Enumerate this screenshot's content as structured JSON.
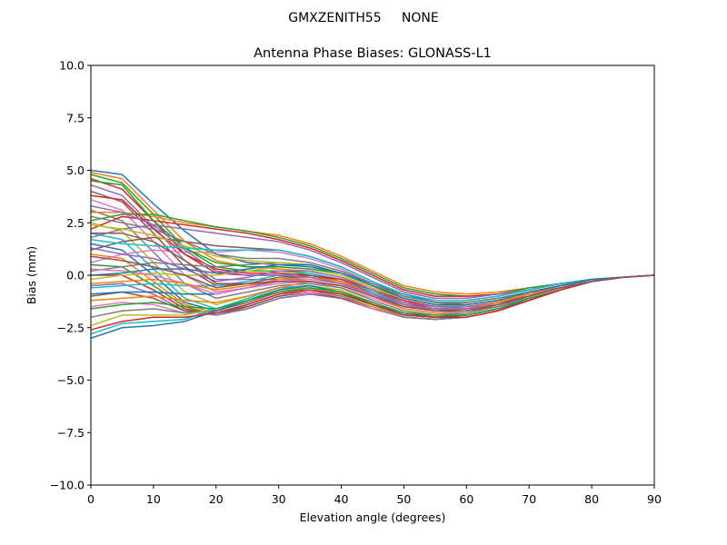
{
  "figure": {
    "suptitle": "GMXZENITH55     NONE"
  },
  "chart_data": {
    "type": "line",
    "title": "Antenna Phase Biases: GLONASS-L1",
    "xlabel": "Elevation angle (degrees)",
    "ylabel": "Bias (mm)",
    "xlim": [
      0,
      90
    ],
    "ylim": [
      -10,
      10
    ],
    "xticks": [
      0,
      10,
      20,
      30,
      40,
      50,
      60,
      70,
      80,
      90
    ],
    "yticks": [
      -10,
      -7.5,
      -5,
      -2.5,
      0,
      2.5,
      5,
      7.5,
      10
    ],
    "xtick_labels": [
      "0",
      "10",
      "20",
      "30",
      "40",
      "50",
      "60",
      "70",
      "80",
      "90"
    ],
    "ytick_labels": [
      "−10.0",
      "−7.5",
      "−5.0",
      "−2.5",
      "0.0",
      "2.5",
      "5.0",
      "7.5",
      "10.0"
    ],
    "grid": false,
    "x": [
      0,
      5,
      10,
      15,
      20,
      25,
      30,
      35,
      40,
      45,
      50,
      55,
      60,
      65,
      70,
      75,
      80,
      85,
      90
    ],
    "colors": [
      "#1f77b4",
      "#ff7f0e",
      "#2ca02c",
      "#d62728",
      "#9467bd",
      "#8c564b",
      "#e377c2",
      "#7f7f7f",
      "#bcbd22",
      "#17becf"
    ],
    "series": [
      {
        "values": [
          5.0,
          4.8,
          3.4,
          2.1,
          1.0,
          0.6,
          0.5,
          0.4,
          0.1,
          -0.4,
          -0.9,
          -1.3,
          -1.4,
          -1.2,
          -0.9,
          -0.6,
          -0.3,
          -0.1,
          0.0
        ]
      },
      {
        "values": [
          4.9,
          4.6,
          3.1,
          1.6,
          0.7,
          0.4,
          0.3,
          0.2,
          -0.1,
          -0.6,
          -1.1,
          -1.4,
          -1.5,
          -1.3,
          -1.0,
          -0.6,
          -0.3,
          -0.1,
          0.0
        ]
      },
      {
        "values": [
          4.8,
          4.4,
          2.9,
          1.3,
          0.4,
          0.2,
          0.2,
          0.1,
          -0.2,
          -0.7,
          -1.2,
          -1.5,
          -1.5,
          -1.3,
          -1.0,
          -0.6,
          -0.3,
          -0.1,
          0.0
        ]
      },
      {
        "values": [
          4.6,
          4.1,
          2.6,
          1.0,
          0.1,
          0.0,
          0.0,
          -0.1,
          -0.3,
          -0.8,
          -1.3,
          -1.6,
          -1.6,
          -1.4,
          -1.0,
          -0.6,
          -0.3,
          -0.1,
          0.0
        ]
      },
      {
        "values": [
          4.3,
          3.8,
          2.3,
          0.7,
          -0.2,
          -0.2,
          -0.2,
          -0.2,
          -0.4,
          -0.9,
          -1.4,
          -1.7,
          -1.7,
          -1.4,
          -1.1,
          -0.7,
          -0.3,
          -0.1,
          0.0
        ]
      },
      {
        "values": [
          4.0,
          3.5,
          2.0,
          0.4,
          -0.5,
          -0.4,
          -0.3,
          -0.3,
          -0.5,
          -1.0,
          -1.5,
          -1.7,
          -1.7,
          -1.5,
          -1.1,
          -0.7,
          -0.3,
          -0.1,
          0.0
        ]
      },
      {
        "values": [
          3.6,
          3.1,
          1.6,
          0.0,
          -0.8,
          -0.6,
          -0.4,
          -0.3,
          -0.6,
          -1.1,
          -1.6,
          -1.8,
          -1.8,
          -1.5,
          -1.1,
          -0.7,
          -0.3,
          -0.1,
          0.0
        ]
      },
      {
        "values": [
          3.1,
          2.6,
          1.1,
          -0.4,
          -1.1,
          -0.8,
          -0.5,
          -0.4,
          -0.6,
          -1.2,
          -1.7,
          -1.9,
          -1.8,
          -1.5,
          -1.1,
          -0.7,
          -0.3,
          -0.1,
          0.0
        ]
      },
      {
        "values": [
          2.5,
          2.1,
          0.6,
          -0.8,
          -1.4,
          -1.0,
          -0.6,
          -0.5,
          -0.7,
          -1.3,
          -1.8,
          -1.9,
          -1.9,
          -1.6,
          -1.2,
          -0.7,
          -0.3,
          -0.1,
          0.0
        ]
      },
      {
        "values": [
          2.0,
          1.7,
          0.3,
          -1.1,
          -1.6,
          -1.2,
          -0.7,
          -0.5,
          -0.8,
          -1.3,
          -1.8,
          -2.0,
          -1.9,
          -1.6,
          -1.2,
          -0.7,
          -0.3,
          -0.1,
          0.0
        ]
      },
      {
        "values": [
          1.5,
          1.2,
          0.0,
          -1.3,
          -1.7,
          -1.3,
          -0.8,
          -0.6,
          -0.9,
          -1.4,
          -1.9,
          -2.0,
          -1.9,
          -1.6,
          -1.2,
          -0.7,
          -0.3,
          -0.1,
          0.0
        ]
      },
      {
        "values": [
          1.0,
          0.8,
          -0.3,
          -1.4,
          -1.8,
          -1.4,
          -0.9,
          -0.7,
          -0.9,
          -1.4,
          -1.9,
          -2.0,
          -2.0,
          -1.7,
          -1.2,
          -0.7,
          -0.3,
          -0.1,
          0.0
        ]
      },
      {
        "values": [
          0.5,
          0.4,
          -0.5,
          -1.5,
          -1.9,
          -1.5,
          -1.0,
          -0.8,
          -1.0,
          -1.5,
          -2.0,
          -2.1,
          -2.0,
          -1.7,
          -1.2,
          -0.7,
          -0.3,
          -0.1,
          0.0
        ]
      },
      {
        "values": [
          0.0,
          0.0,
          -0.7,
          -1.6,
          -1.9,
          -1.6,
          -1.1,
          -0.9,
          -1.1,
          -1.5,
          -2.0,
          -2.1,
          -2.0,
          -1.7,
          -1.2,
          -0.7,
          -0.3,
          -0.1,
          0.0
        ]
      },
      {
        "values": [
          -0.5,
          -0.4,
          -0.9,
          -1.7,
          -1.9,
          -1.6,
          -1.1,
          -0.9,
          -1.1,
          -1.6,
          -2.0,
          -2.1,
          -2.0,
          -1.7,
          -1.2,
          -0.7,
          -0.3,
          -0.1,
          0.0
        ]
      },
      {
        "values": [
          -1.0,
          -0.8,
          -1.1,
          -1.7,
          -1.8,
          -1.5,
          -1.0,
          -0.8,
          -1.1,
          -1.6,
          -2.0,
          -2.1,
          -2.0,
          -1.7,
          -1.2,
          -0.7,
          -0.3,
          -0.1,
          0.0
        ]
      },
      {
        "values": [
          -1.5,
          -1.3,
          -1.4,
          -1.8,
          -1.8,
          -1.4,
          -0.9,
          -0.8,
          -1.0,
          -1.6,
          -2.0,
          -2.1,
          -2.0,
          -1.7,
          -1.2,
          -0.7,
          -0.3,
          -0.1,
          0.0
        ]
      },
      {
        "values": [
          -2.0,
          -1.7,
          -1.6,
          -1.8,
          -1.7,
          -1.3,
          -0.8,
          -0.7,
          -1.0,
          -1.5,
          -2.0,
          -2.1,
          -2.0,
          -1.7,
          -1.2,
          -0.7,
          -0.3,
          -0.1,
          0.0
        ]
      },
      {
        "values": [
          -2.4,
          -1.9,
          -1.9,
          -1.9,
          -1.6,
          -1.2,
          -0.7,
          -0.6,
          -0.9,
          -1.5,
          -1.9,
          -2.0,
          -2.0,
          -1.7,
          -1.2,
          -0.7,
          -0.3,
          -0.1,
          0.0
        ]
      },
      {
        "values": [
          -2.8,
          -2.3,
          -2.2,
          -2.1,
          -1.6,
          -1.1,
          -0.6,
          -0.5,
          -0.8,
          -1.4,
          -1.9,
          -2.0,
          -1.9,
          -1.6,
          -1.2,
          -0.7,
          -0.3,
          -0.1,
          0.0
        ]
      },
      {
        "values": [
          -3.0,
          -2.5,
          -2.4,
          -2.2,
          -1.7,
          -1.2,
          -0.7,
          -0.5,
          -0.8,
          -1.4,
          -1.8,
          -2.0,
          -1.9,
          -1.6,
          -1.2,
          -0.7,
          -0.3,
          -0.1,
          0.0
        ]
      },
      {
        "values": [
          3.0,
          3.0,
          2.8,
          2.5,
          2.3,
          2.1,
          1.9,
          1.5,
          0.9,
          0.2,
          -0.5,
          -0.8,
          -0.9,
          -0.8,
          -0.6,
          -0.4,
          -0.2,
          -0.1,
          0.0
        ]
      },
      {
        "values": [
          2.6,
          2.9,
          2.9,
          2.6,
          2.3,
          2.1,
          1.8,
          1.4,
          0.8,
          0.1,
          -0.6,
          -0.9,
          -1.0,
          -0.9,
          -0.6,
          -0.4,
          -0.2,
          -0.1,
          0.0
        ]
      },
      {
        "values": [
          2.2,
          2.8,
          2.6,
          2.4,
          2.2,
          2.0,
          1.7,
          1.3,
          0.7,
          0.0,
          -0.7,
          -1.0,
          -1.0,
          -0.9,
          -0.7,
          -0.4,
          -0.2,
          -0.1,
          0.0
        ]
      },
      {
        "values": [
          1.8,
          2.2,
          2.4,
          2.2,
          2.0,
          1.8,
          1.6,
          1.2,
          0.6,
          -0.1,
          -0.8,
          -1.1,
          -1.1,
          -0.9,
          -0.7,
          -0.4,
          -0.2,
          -0.1,
          0.0
        ]
      },
      {
        "values": [
          1.2,
          1.6,
          1.8,
          1.6,
          1.4,
          1.3,
          1.2,
          0.9,
          0.4,
          -0.3,
          -0.9,
          -1.2,
          -1.2,
          -1.0,
          -0.7,
          -0.4,
          -0.2,
          -0.1,
          0.0
        ]
      },
      {
        "values": [
          0.6,
          1.0,
          1.2,
          1.1,
          1.1,
          1.2,
          1.1,
          0.8,
          0.3,
          -0.4,
          -1.0,
          -1.3,
          -1.3,
          -1.1,
          -0.8,
          -0.5,
          -0.2,
          -0.1,
          0.0
        ]
      },
      {
        "values": [
          0.2,
          0.4,
          0.6,
          0.5,
          0.4,
          0.5,
          0.6,
          0.5,
          0.1,
          -0.5,
          -1.1,
          -1.4,
          -1.4,
          -1.2,
          -0.8,
          -0.5,
          -0.2,
          -0.1,
          0.0
        ]
      },
      {
        "values": [
          -0.2,
          0.0,
          0.1,
          0.0,
          0.0,
          0.2,
          0.4,
          0.3,
          0.0,
          -0.6,
          -1.2,
          -1.5,
          -1.4,
          -1.2,
          -0.9,
          -0.5,
          -0.2,
          -0.1,
          0.0
        ]
      },
      {
        "values": [
          -0.6,
          -0.5,
          -0.4,
          -0.5,
          -0.5,
          -0.3,
          0.0,
          0.1,
          -0.2,
          -0.8,
          -1.4,
          -1.6,
          -1.5,
          -1.3,
          -0.9,
          -0.5,
          -0.2,
          -0.1,
          0.0
        ]
      },
      {
        "values": [
          -0.9,
          -0.8,
          -0.8,
          -0.9,
          -0.9,
          -0.6,
          -0.2,
          0.0,
          -0.3,
          -0.9,
          -1.5,
          -1.7,
          -1.6,
          -1.3,
          -0.9,
          -0.5,
          -0.2,
          -0.1,
          0.0
        ]
      },
      {
        "values": [
          -1.2,
          -1.1,
          -1.0,
          -1.2,
          -1.3,
          -1.0,
          -0.6,
          -0.3,
          -0.5,
          -1.0,
          -1.6,
          -1.8,
          -1.7,
          -1.4,
          -1.0,
          -0.6,
          -0.3,
          -0.1,
          0.0
        ]
      },
      {
        "values": [
          4.5,
          4.3,
          2.6,
          1.3,
          0.6,
          0.4,
          0.4,
          0.3,
          0.1,
          -0.5,
          -1.0,
          -1.3,
          -1.3,
          -1.1,
          -0.8,
          -0.5,
          -0.3,
          -0.1,
          0.0
        ]
      },
      {
        "values": [
          3.8,
          3.6,
          2.2,
          1.0,
          0.3,
          0.1,
          0.1,
          0.0,
          -0.2,
          -0.7,
          -1.2,
          -1.5,
          -1.5,
          -1.3,
          -0.9,
          -0.6,
          -0.3,
          -0.1,
          0.0
        ]
      },
      {
        "values": [
          1.3,
          1.0,
          0.8,
          0.3,
          -0.3,
          -0.1,
          0.2,
          0.2,
          -0.1,
          -0.7,
          -1.3,
          -1.5,
          -1.5,
          -1.3,
          -0.9,
          -0.5,
          -0.3,
          -0.1,
          0.0
        ]
      },
      {
        "values": [
          0.9,
          0.7,
          0.4,
          0.0,
          -0.6,
          -0.4,
          -0.1,
          0.0,
          -0.3,
          -0.9,
          -1.4,
          -1.6,
          -1.6,
          -1.3,
          -1.0,
          -0.6,
          -0.3,
          -0.1,
          0.0
        ]
      },
      {
        "values": [
          0.3,
          0.2,
          0.0,
          -0.4,
          -0.9,
          -0.6,
          -0.3,
          -0.2,
          -0.4,
          -1.0,
          -1.5,
          -1.7,
          -1.7,
          -1.4,
          -1.0,
          -0.6,
          -0.3,
          -0.1,
          0.0
        ]
      },
      {
        "values": [
          2.8,
          2.5,
          2.2,
          1.6,
          1.0,
          0.8,
          0.8,
          0.6,
          0.2,
          -0.4,
          -1.0,
          -1.3,
          -1.3,
          -1.1,
          -0.8,
          -0.5,
          -0.2,
          -0.1,
          0.0
        ]
      },
      {
        "values": [
          2.4,
          2.2,
          1.9,
          1.4,
          0.9,
          0.7,
          0.6,
          0.5,
          0.1,
          -0.5,
          -1.1,
          -1.4,
          -1.4,
          -1.2,
          -0.8,
          -0.5,
          -0.2,
          -0.1,
          0.0
        ]
      },
      {
        "values": [
          1.7,
          1.5,
          1.4,
          1.3,
          1.2,
          1.2,
          1.2,
          0.9,
          0.4,
          -0.3,
          -0.9,
          -1.2,
          -1.2,
          -1.0,
          -0.7,
          -0.4,
          -0.2,
          -0.1,
          0.0
        ]
      },
      {
        "values": [
          0.0,
          0.1,
          0.3,
          0.3,
          0.1,
          0.3,
          0.5,
          0.5,
          0.1,
          -0.5,
          -1.1,
          -1.4,
          -1.4,
          -1.2,
          -0.8,
          -0.5,
          -0.2,
          -0.1,
          0.0
        ]
      },
      {
        "values": [
          -0.4,
          -0.3,
          -0.2,
          -0.4,
          -0.7,
          -0.5,
          -0.2,
          -0.1,
          -0.3,
          -0.9,
          -1.4,
          -1.6,
          -1.6,
          -1.3,
          -0.9,
          -0.6,
          -0.3,
          -0.1,
          0.0
        ]
      },
      {
        "values": [
          -1.6,
          -1.4,
          -1.3,
          -1.5,
          -1.6,
          -1.2,
          -0.8,
          -0.6,
          -0.8,
          -1.3,
          -1.8,
          -1.9,
          -1.9,
          -1.6,
          -1.1,
          -0.7,
          -0.3,
          -0.1,
          0.0
        ]
      },
      {
        "values": [
          -2.6,
          -2.2,
          -2.0,
          -2.0,
          -1.8,
          -1.4,
          -0.9,
          -0.7,
          -0.9,
          -1.4,
          -1.9,
          -2.0,
          -2.0,
          -1.7,
          -1.2,
          -0.7,
          -0.3,
          -0.1,
          0.0
        ]
      },
      {
        "values": [
          3.3,
          3.0,
          2.4,
          1.2,
          0.2,
          0.0,
          0.0,
          -0.1,
          -0.4,
          -0.9,
          -1.4,
          -1.6,
          -1.6,
          -1.4,
          -1.0,
          -0.6,
          -0.3,
          -0.1,
          0.0
        ]
      },
      {
        "values": [
          2.0,
          2.0,
          1.6,
          0.7,
          -0.4,
          -0.4,
          -0.3,
          -0.3,
          -0.5,
          -1.0,
          -1.5,
          -1.7,
          -1.7,
          -1.4,
          -1.0,
          -0.6,
          -0.3,
          -0.1,
          0.0
        ]
      }
    ]
  }
}
